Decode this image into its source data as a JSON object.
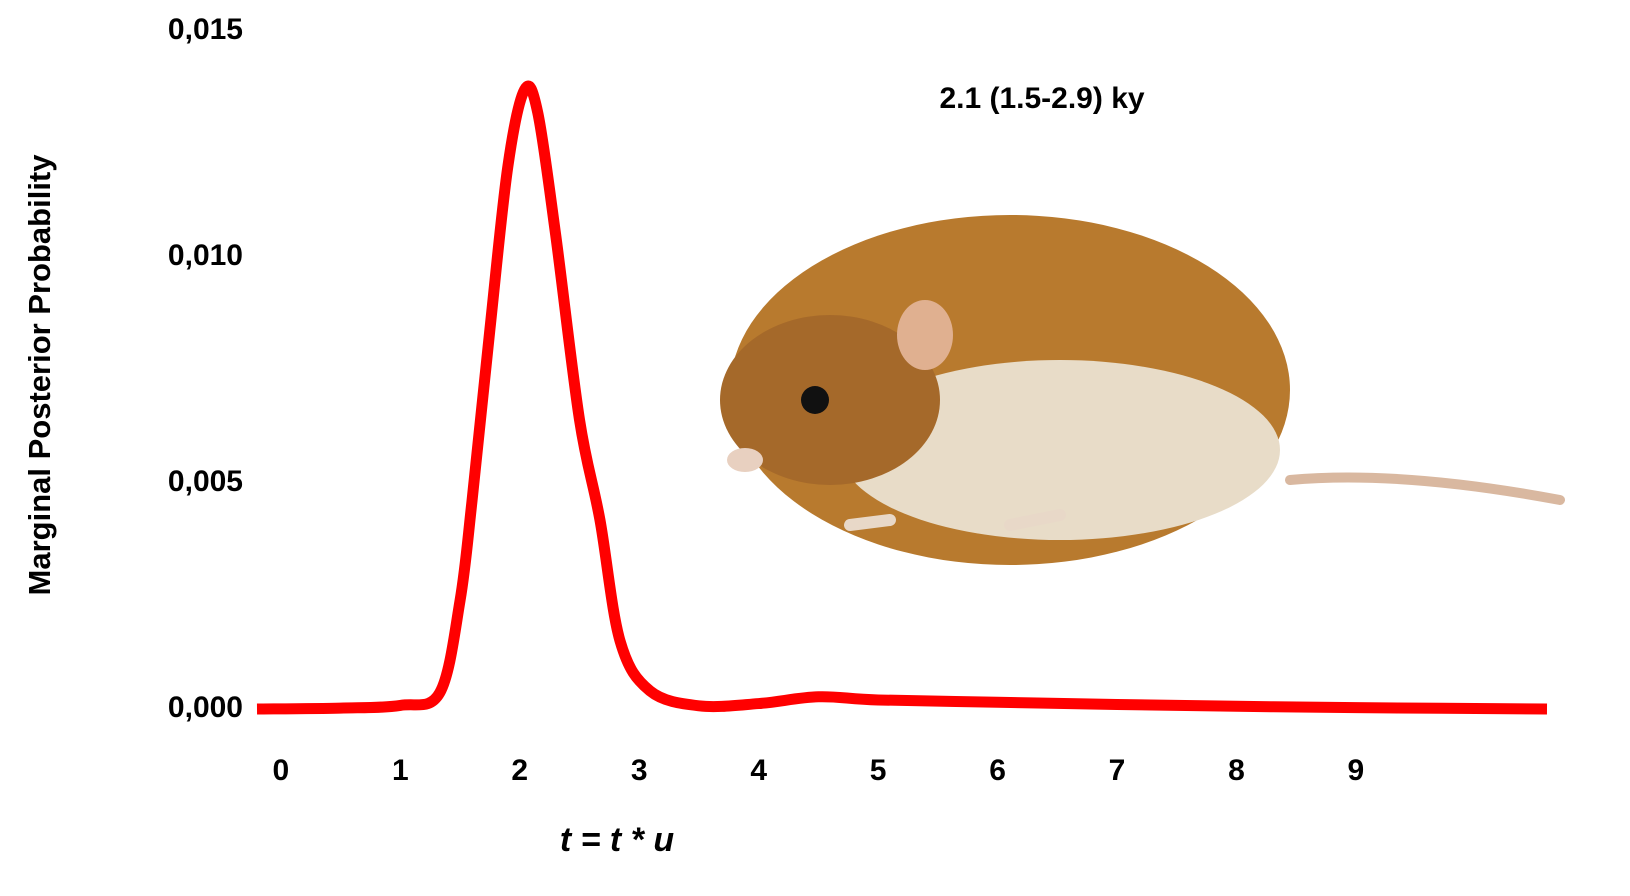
{
  "chart_data": {
    "type": "line",
    "y_label": "Marginal Posterior Probability",
    "x_label": "t = t * u",
    "annotation": "2.1 (1.5-2.9) ky",
    "xlim": [
      -0.2,
      10.6
    ],
    "ylim": [
      0,
      0.015
    ],
    "xticks": [
      0,
      1,
      2,
      3,
      4,
      5,
      6,
      7,
      8,
      9
    ],
    "yticks": [
      {
        "value": 0,
        "label": "0,000"
      },
      {
        "value": 0.005,
        "label": "0,005"
      },
      {
        "value": 0.01,
        "label": "0,010"
      },
      {
        "value": 0.015,
        "label": "0,015"
      }
    ],
    "grid": false,
    "series": [
      {
        "color": "#ff0000",
        "x": [
          -0.2,
          0.5,
          1.0,
          1.33,
          1.5,
          1.6,
          1.75,
          1.9,
          2.04,
          2.15,
          2.3,
          2.5,
          2.67,
          2.84,
          3.09,
          3.5,
          4.0,
          4.5,
          5.0,
          6.0,
          7.0,
          8.0,
          9.0,
          10.6
        ],
        "values": [
          0,
          2e-05,
          8e-05,
          0.00036,
          0.0024,
          0.0046,
          0.0084,
          0.012,
          0.0137,
          0.0132,
          0.0105,
          0.0064,
          0.0042,
          0.0015,
          0.0004,
          7e-05,
          0.00012,
          0.00027,
          0.0002,
          0.00015,
          0.0001,
          6e-05,
          3e-05,
          0
        ]
      }
    ]
  }
}
